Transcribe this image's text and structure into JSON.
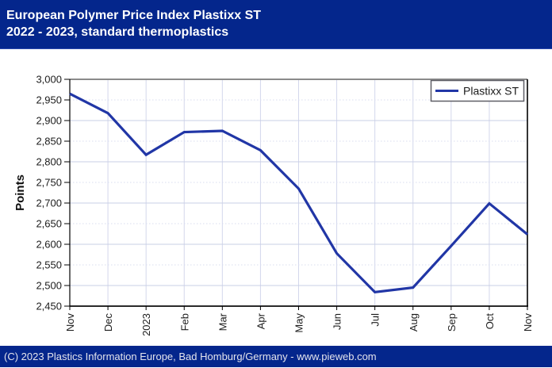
{
  "header": {
    "title_line1": "European Polymer Price Index Plastixx ST",
    "title_line2": "2022 - 2023, standard thermoplastics"
  },
  "footer": {
    "text": "(C) 2023 Plastics Information Europe, Bad Homburg/Germany - www.pieweb.com"
  },
  "legend": {
    "label": "Plastixx ST"
  },
  "colors": {
    "header_bg": "#04268c",
    "title_text": "#ffffff",
    "footer_text": "#e4e4ec",
    "line": "#2136a6",
    "grid_vertical": "#d3d7ec",
    "grid_solid": "#c9cfe6",
    "grid_dotted": "#d8dcef",
    "axis_top": "#8a8a8a",
    "axis_bottom": "#2b2b2b",
    "axis_side": "#000000",
    "tick_label": "#1c1c1c",
    "legend_border": "#5e5e66"
  },
  "chart_data": {
    "type": "line",
    "title": "European Polymer Price Index Plastixx ST 2022 - 2023, standard thermoplastics",
    "ylabel": "Points",
    "categories": [
      "Nov",
      "Dec",
      "2023",
      "Feb",
      "Mar",
      "Apr",
      "May",
      "Jun",
      "Jul",
      "Aug",
      "Sep",
      "Oct",
      "Nov"
    ],
    "series": [
      {
        "name": "Plastixx ST",
        "values": [
          2965,
          2918,
          2817,
          2872,
          2875,
          2828,
          2735,
          2578,
          2484,
          2495,
          2596,
          2699,
          2624
        ]
      }
    ],
    "ylim": [
      2450,
      3000
    ],
    "ytick_step": 50,
    "grid": true,
    "legend_position": "top-right"
  }
}
